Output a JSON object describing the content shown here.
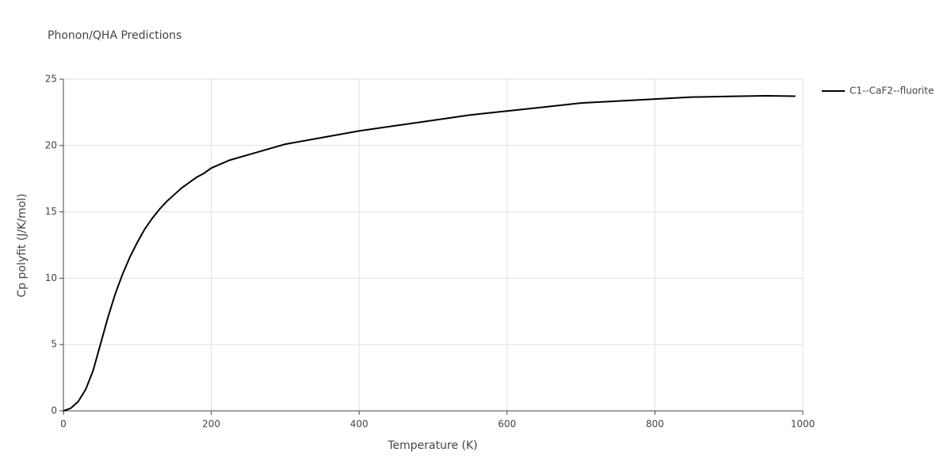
{
  "chart_data": {
    "type": "line",
    "title": "Phonon/QHA Predictions",
    "x_label": "Temperature (K)",
    "y_label": "Cp polyfit (J/K/mol)",
    "x": [
      0,
      10,
      20,
      30,
      40,
      50,
      60,
      70,
      80,
      90,
      100,
      110,
      120,
      130,
      140,
      150,
      160,
      170,
      180,
      190,
      200,
      225,
      250,
      275,
      300,
      350,
      400,
      450,
      500,
      550,
      600,
      650,
      700,
      750,
      800,
      850,
      900,
      950,
      990
    ],
    "series": [
      {
        "name": "C1--CaF2--fluorite",
        "color": "#000000",
        "values": [
          0,
          0.2,
          0.7,
          1.6,
          3.0,
          5.0,
          7.0,
          8.8,
          10.3,
          11.6,
          12.7,
          13.7,
          14.5,
          15.2,
          15.8,
          16.3,
          16.8,
          17.2,
          17.6,
          17.9,
          18.3,
          18.9,
          19.3,
          19.7,
          20.1,
          20.6,
          21.1,
          21.5,
          21.9,
          22.3,
          22.6,
          22.9,
          23.2,
          23.35,
          23.5,
          23.65,
          23.7,
          23.75,
          23.72
        ]
      }
    ],
    "xlim": [
      0,
      1000
    ],
    "xticks": [
      0,
      200,
      400,
      600,
      800,
      1000
    ],
    "ylim": [
      0,
      25
    ],
    "yticks": [
      0,
      5,
      10,
      15,
      20,
      25
    ],
    "grid": true,
    "legend": "right"
  }
}
